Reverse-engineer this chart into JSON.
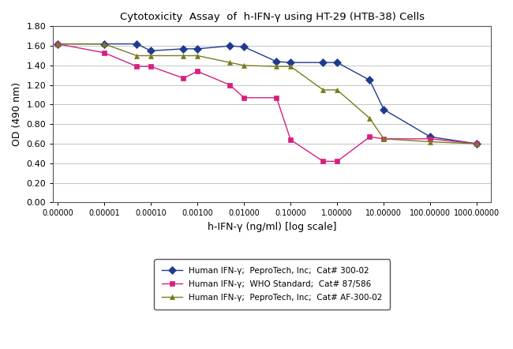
{
  "title": "Cytotoxicity  Assay  of  h-IFN-γ using HT-29 (HTB-38) Cells",
  "xlabel": "h-IFN-γ (ng/ml) [log scale]",
  "ylabel": "OD (490 nm)",
  "ylim": [
    0.0,
    1.8
  ],
  "yticks": [
    0.0,
    0.2,
    0.4,
    0.6,
    0.8,
    1.0,
    1.2,
    1.4,
    1.6,
    1.8
  ],
  "series1": {
    "label": "Human IFN-γ;  PeproTech, Inc;  Cat# 300-02",
    "color": "#1f3a8f",
    "marker": "D",
    "markersize": 5,
    "x": [
      1e-06,
      1e-05,
      5e-05,
      0.0001,
      0.0005,
      0.001,
      0.005,
      0.01,
      0.05,
      0.1,
      0.5,
      1.0,
      5.0,
      10.0,
      100.0,
      1000.0
    ],
    "y": [
      1.62,
      1.62,
      1.62,
      1.55,
      1.57,
      1.57,
      1.6,
      1.59,
      1.44,
      1.43,
      1.43,
      1.43,
      1.25,
      0.95,
      0.67,
      0.6
    ]
  },
  "series2": {
    "label": "Human IFN-γ;  WHO Standard;  Cat# 87/586",
    "color": "#d42080",
    "marker": "s",
    "markersize": 5,
    "x": [
      1e-06,
      1e-05,
      5e-05,
      0.0001,
      0.0005,
      0.001,
      0.005,
      0.01,
      0.05,
      0.1,
      0.5,
      1.0,
      5.0,
      10.0,
      100.0,
      1000.0
    ],
    "y": [
      1.62,
      1.53,
      1.39,
      1.39,
      1.27,
      1.34,
      1.2,
      1.07,
      1.07,
      0.64,
      0.42,
      0.42,
      0.67,
      0.65,
      0.65,
      0.6
    ]
  },
  "series3": {
    "label": "Human IFN-γ;  PeproTech, Inc;  Cat# AF-300-02",
    "color": "#7a7a20",
    "marker": "^",
    "markersize": 5,
    "x": [
      1e-06,
      1e-05,
      5e-05,
      0.0001,
      0.0005,
      0.001,
      0.005,
      0.01,
      0.05,
      0.1,
      0.5,
      1.0,
      5.0,
      10.0,
      100.0,
      1000.0
    ],
    "y": [
      1.62,
      1.62,
      1.5,
      1.5,
      1.5,
      1.5,
      1.43,
      1.4,
      1.39,
      1.39,
      1.15,
      1.15,
      0.86,
      0.65,
      0.62,
      0.6
    ]
  },
  "bg_color": "#ffffff",
  "grid_color": "#bbbbbb",
  "xtick_vals": [
    1e-06,
    1e-05,
    0.0001,
    0.001,
    0.01,
    0.1,
    1.0,
    10.0,
    100.0,
    1000.0
  ],
  "xtick_labels": [
    "0.00000",
    "0.00001",
    "0.00010",
    "0.00100",
    "0.01000",
    "0.10000",
    "1.00000",
    "10.00000",
    "100.00000",
    "1000.00000"
  ]
}
